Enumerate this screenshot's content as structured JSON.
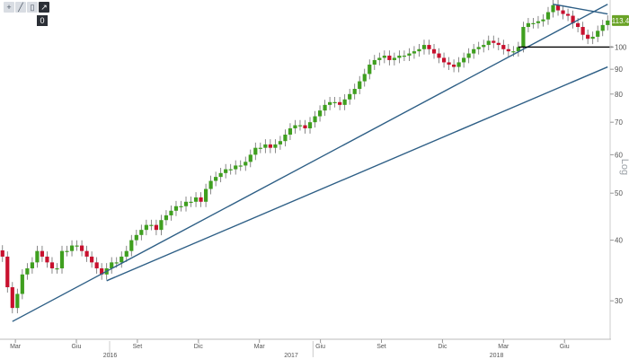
{
  "toolbar": {
    "tools": [
      "+",
      "╱",
      "▯",
      "↗"
    ],
    "zero_label": "0"
  },
  "chart_data": {
    "type": "candlestick",
    "y_scale": "log",
    "ylim": [
      25,
      125
    ],
    "y_ticks": [
      30,
      40,
      50,
      60,
      70,
      80,
      90,
      100
    ],
    "y_tick_labels": [
      "30",
      "40",
      "50",
      "60",
      "70",
      "80",
      "90",
      "100"
    ],
    "axis_title_right": "Log",
    "last_price": 113.4,
    "last_price_label": "113.4",
    "month_ticks": [
      "Mar",
      "Giu",
      "Set",
      "Dic",
      "Mar",
      "Giu",
      "Set",
      "Dic",
      "Mar",
      "Giu"
    ],
    "year_labels": [
      "2016",
      "2017",
      "2018"
    ],
    "colors": {
      "up": "#3f9f1f",
      "down": "#c8102e",
      "trendline": "#2e5f86",
      "support": "#000000",
      "price_tag": "#6aa327"
    },
    "closes": [
      37,
      32,
      29,
      31,
      34,
      35,
      36,
      38,
      37,
      36,
      35,
      35,
      38,
      38,
      39,
      39,
      38,
      37,
      36,
      35,
      34,
      35,
      36,
      36,
      37,
      38,
      40,
      41,
      42,
      43,
      43,
      42,
      44,
      45,
      46,
      47,
      47,
      48,
      48,
      49,
      48,
      51,
      53,
      54,
      55,
      56,
      56,
      57,
      57,
      58,
      60,
      62,
      62,
      63,
      62,
      63,
      64,
      66,
      68,
      69,
      69,
      68,
      70,
      72,
      74,
      76,
      77,
      77,
      76,
      78,
      80,
      82,
      85,
      88,
      92,
      94,
      95,
      96,
      94,
      95,
      96,
      96,
      97,
      98,
      99,
      101,
      99,
      97,
      95,
      93,
      92,
      91,
      93,
      95,
      97,
      99,
      100,
      101,
      103,
      102,
      101,
      99,
      98,
      98,
      100,
      110,
      112,
      112,
      113,
      114,
      118,
      122,
      119,
      117,
      116,
      112,
      110,
      106,
      104,
      105,
      108,
      111,
      113.4
    ],
    "trendlines": [
      {
        "from": {
          "bar": 2,
          "price": 27.2
        },
        "to": {
          "bar": 122,
          "price": 122.5
        }
      },
      {
        "from": {
          "bar": 21,
          "price": 33.0
        },
        "to": {
          "bar": 122,
          "price": 91.0
        }
      },
      {
        "from": {
          "bar": 111,
          "price": 122.5
        },
        "to": {
          "bar": 122,
          "price": 117.0
        }
      }
    ],
    "support_level": {
      "from_bar": 104,
      "to_bar": 122,
      "price": 100
    }
  }
}
